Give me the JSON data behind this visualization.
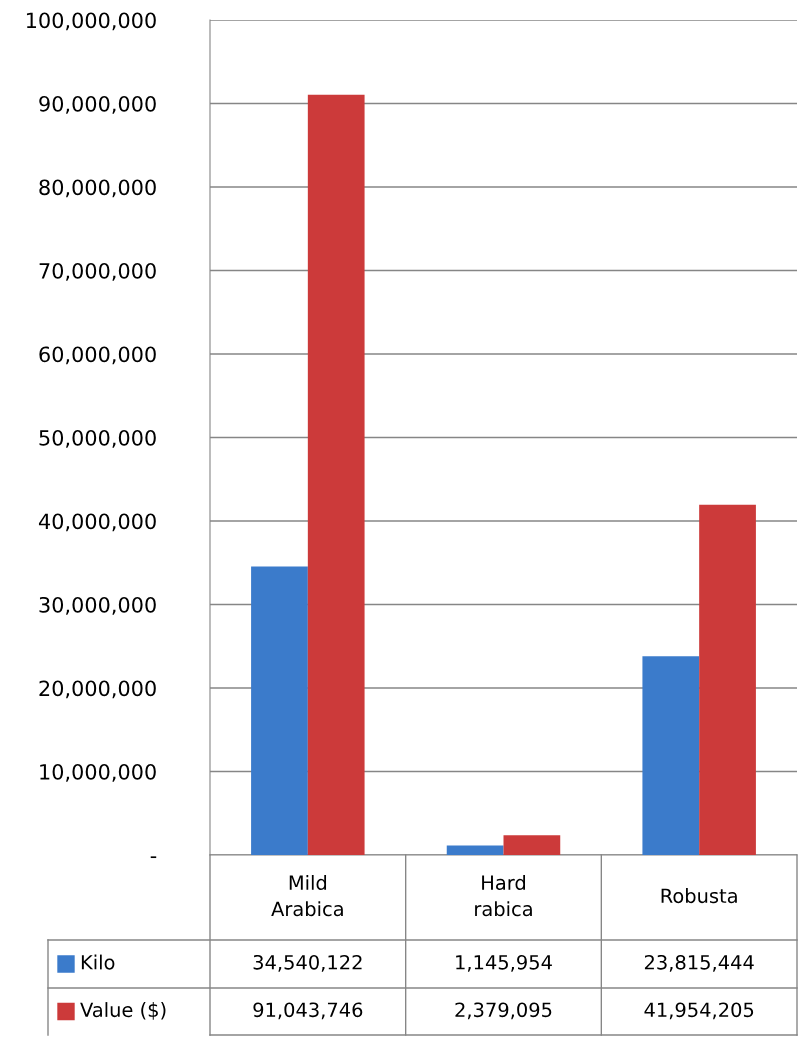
{
  "chart_data": {
    "type": "bar",
    "categories": [
      "Mild\nArabica",
      "Hard\nrabica",
      "Robusta"
    ],
    "series": [
      {
        "name": "Kilo",
        "color": "#3b7bcb",
        "values": [
          34540122,
          1145954,
          23815444
        ],
        "value_labels": [
          "34,540,122",
          "1,145,954",
          "23,815,444"
        ]
      },
      {
        "name": "Value ($)",
        "color": "#cc3a3a",
        "values": [
          91043746,
          2379095,
          41954205
        ],
        "value_labels": [
          "91,043,746",
          "2,379,095",
          "41,954,205"
        ]
      }
    ],
    "ylim": [
      0,
      100000000
    ],
    "yticks": [
      {
        "value": 0,
        "label": "-"
      },
      {
        "value": 10000000,
        "label": "10,000,000"
      },
      {
        "value": 20000000,
        "label": "20,000,000"
      },
      {
        "value": 30000000,
        "label": "30,000,000"
      },
      {
        "value": 40000000,
        "label": "40,000,000"
      },
      {
        "value": 50000000,
        "label": "50,000,000"
      },
      {
        "value": 60000000,
        "label": "60,000,000"
      },
      {
        "value": 70000000,
        "label": "70,000,000"
      },
      {
        "value": 80000000,
        "label": "80,000,000"
      },
      {
        "value": 90000000,
        "label": "90,000,000"
      },
      {
        "value": 100000000,
        "label": "100,000,000"
      }
    ],
    "grid": "y",
    "legend": "bottom"
  }
}
